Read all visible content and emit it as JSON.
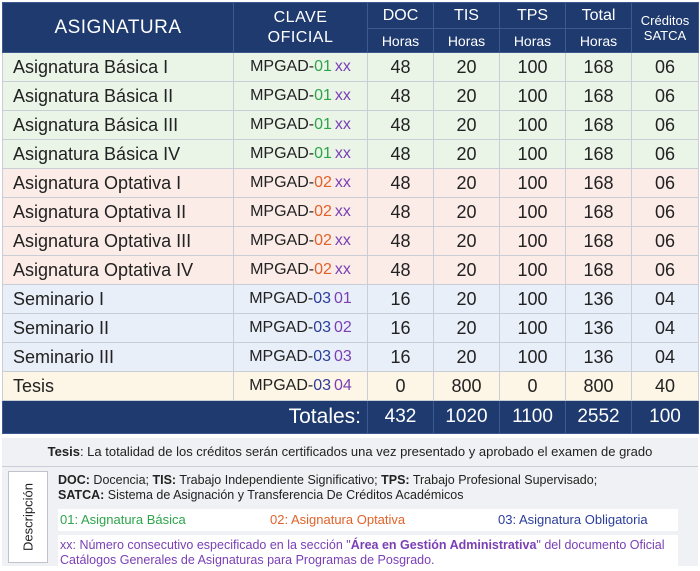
{
  "header": {
    "asignatura": "ASIGNATURA",
    "clave_line1": "CLAVE",
    "clave_line2": "OFICIAL",
    "doc": "DOC",
    "tis": "TIS",
    "tps": "TPS",
    "total": "Total",
    "horas": "Horas",
    "creditos_line1": "Créditos",
    "creditos_line2": "SATCA"
  },
  "rows": [
    {
      "name": "Asignatura Básica I",
      "prefix": "MPGAD-",
      "code": "01",
      "suffix": "xx",
      "doc": "48",
      "tis": "20",
      "tps": "100",
      "total": "168",
      "creditos": "06"
    },
    {
      "name": "Asignatura Básica II",
      "prefix": "MPGAD-",
      "code": "01",
      "suffix": "xx",
      "doc": "48",
      "tis": "20",
      "tps": "100",
      "total": "168",
      "creditos": "06"
    },
    {
      "name": "Asignatura Básica III",
      "prefix": "MPGAD-",
      "code": "01",
      "suffix": "xx",
      "doc": "48",
      "tis": "20",
      "tps": "100",
      "total": "168",
      "creditos": "06"
    },
    {
      "name": "Asignatura Básica IV",
      "prefix": "MPGAD-",
      "code": "01",
      "suffix": "xx",
      "doc": "48",
      "tis": "20",
      "tps": "100",
      "total": "168",
      "creditos": "06"
    },
    {
      "name": "Asignatura Optativa I",
      "prefix": "MPGAD-",
      "code": "02",
      "suffix": "xx",
      "doc": "48",
      "tis": "20",
      "tps": "100",
      "total": "168",
      "creditos": "06"
    },
    {
      "name": "Asignatura Optativa II",
      "prefix": "MPGAD-",
      "code": "02",
      "suffix": "xx",
      "doc": "48",
      "tis": "20",
      "tps": "100",
      "total": "168",
      "creditos": "06"
    },
    {
      "name": "Asignatura Optativa III",
      "prefix": "MPGAD-",
      "code": "02",
      "suffix": "xx",
      "doc": "48",
      "tis": "20",
      "tps": "100",
      "total": "168",
      "creditos": "06"
    },
    {
      "name": "Asignatura Optativa IV",
      "prefix": "MPGAD-",
      "code": "02",
      "suffix": "xx",
      "doc": "48",
      "tis": "20",
      "tps": "100",
      "total": "168",
      "creditos": "06"
    },
    {
      "name": "Seminario I",
      "prefix": "MPGAD-",
      "code": "03",
      "suffix": "01",
      "doc": "16",
      "tis": "20",
      "tps": "100",
      "total": "136",
      "creditos": "04"
    },
    {
      "name": "Seminario II",
      "prefix": "MPGAD-",
      "code": "03",
      "suffix": "02",
      "doc": "16",
      "tis": "20",
      "tps": "100",
      "total": "136",
      "creditos": "04"
    },
    {
      "name": "Seminario III",
      "prefix": "MPGAD-",
      "code": "03",
      "suffix": "03",
      "doc": "16",
      "tis": "20",
      "tps": "100",
      "total": "136",
      "creditos": "04"
    },
    {
      "name": "Tesis",
      "prefix": "MPGAD-",
      "code": "03",
      "suffix": "04",
      "doc": "0",
      "tis": "800",
      "tps": "0",
      "total": "800",
      "creditos": "40"
    }
  ],
  "totals": {
    "label": "Totales:",
    "doc": "432",
    "tis": "1020",
    "tps": "1100",
    "total": "2552",
    "creditos": "100"
  },
  "tesis_note": {
    "label": "Tesis",
    "text": ": La totalidad de los créditos serán certificados una vez presentado y aprobado el examen de grado"
  },
  "description": {
    "label": "Descripción",
    "doc_abbr": "DOC:",
    "doc_text": " Docencia; ",
    "tis_abbr": "TIS:",
    "tis_text": " Trabajo Independiente Significativo; ",
    "tps_abbr": "TPS:",
    "tps_text": " Trabajo Profesional Supervisado;",
    "satca_abbr": "SATCA:",
    "satca_text": " Sistema de Asignación y Transferencia De Créditos Académicos",
    "legend_01": "01: Asignatura Básica",
    "legend_02": "02: Asignatura Optativa",
    "legend_03": "03: Asignatura Obligatoria",
    "xx_lead": "xx: Número consecutivo especificado en la sección \"",
    "xx_bold": "Área en Gestión Administrativa",
    "xx_tail": "\" del documento Oficial Catálogos Generales de Asignaturas para Programas de Posgrado."
  },
  "colors": {
    "header_bg": "#1e3a6e",
    "basica": "#2da44a",
    "optativa": "#e0622a",
    "obligatoria": "#2a3d9a",
    "xx": "#7a3fb5"
  }
}
